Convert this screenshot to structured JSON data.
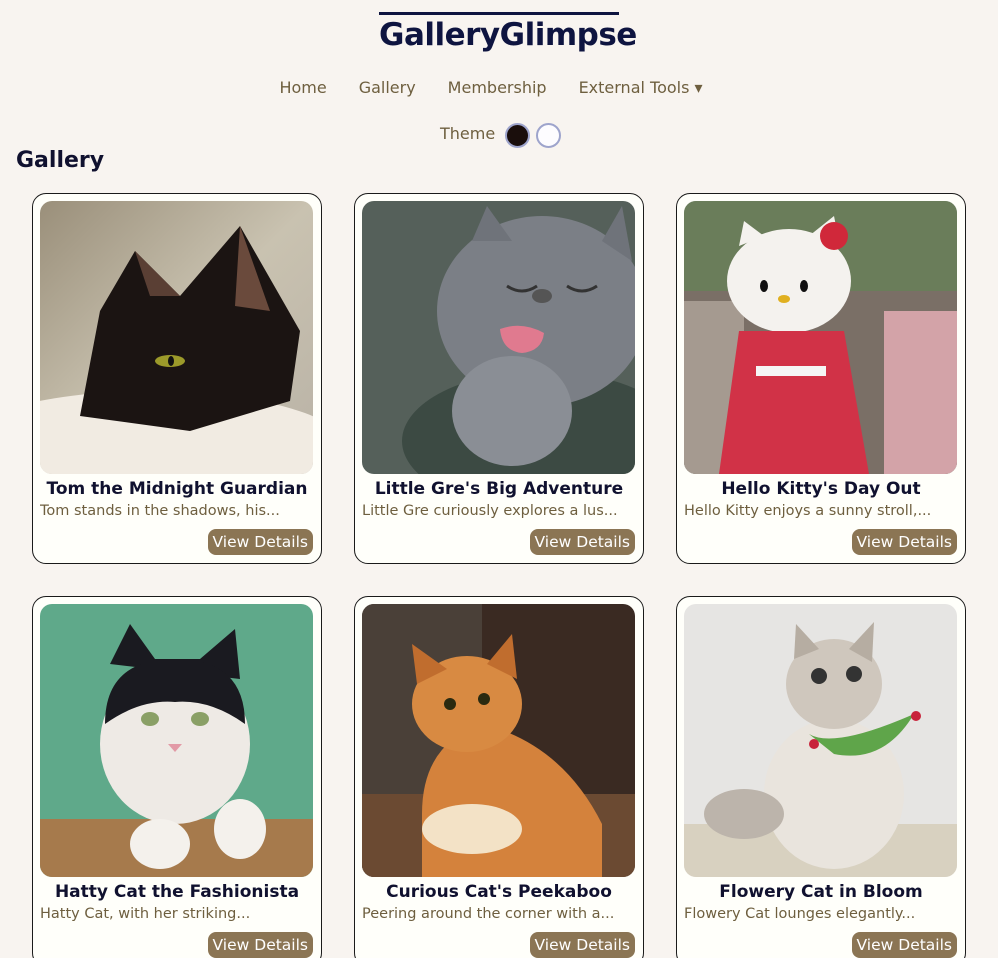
{
  "site": {
    "title": "GalleryGlimpse"
  },
  "nav": {
    "items": [
      {
        "label": "Home"
      },
      {
        "label": "Gallery"
      },
      {
        "label": "Membership"
      },
      {
        "label": "External Tools ▾"
      }
    ]
  },
  "theme": {
    "label": "Theme",
    "options": [
      "dark",
      "light"
    ]
  },
  "gallery": {
    "heading": "Gallery",
    "button_label": "View Details",
    "cards": [
      {
        "title": "Tom the Midnight Guardian",
        "desc": "Tom stands in the shadows, his..."
      },
      {
        "title": "Little Gre's Big Adventure",
        "desc": "Little Gre curiously explores a lus..."
      },
      {
        "title": "Hello Kitty's Day Out",
        "desc": "Hello Kitty enjoys a sunny stroll,..."
      },
      {
        "title": "Hatty Cat the Fashionista",
        "desc": "Hatty Cat, with her striking..."
      },
      {
        "title": "Curious Cat's Peekaboo",
        "desc": "Peering around the corner with a..."
      },
      {
        "title": "Flowery Cat in Bloom",
        "desc": "Flowery Cat lounges elegantly..."
      }
    ]
  },
  "colors": {
    "background": "#f8f4f0",
    "accent": "#8b7554",
    "nav_text": "#6e5f3f",
    "title": "#0e1440"
  }
}
